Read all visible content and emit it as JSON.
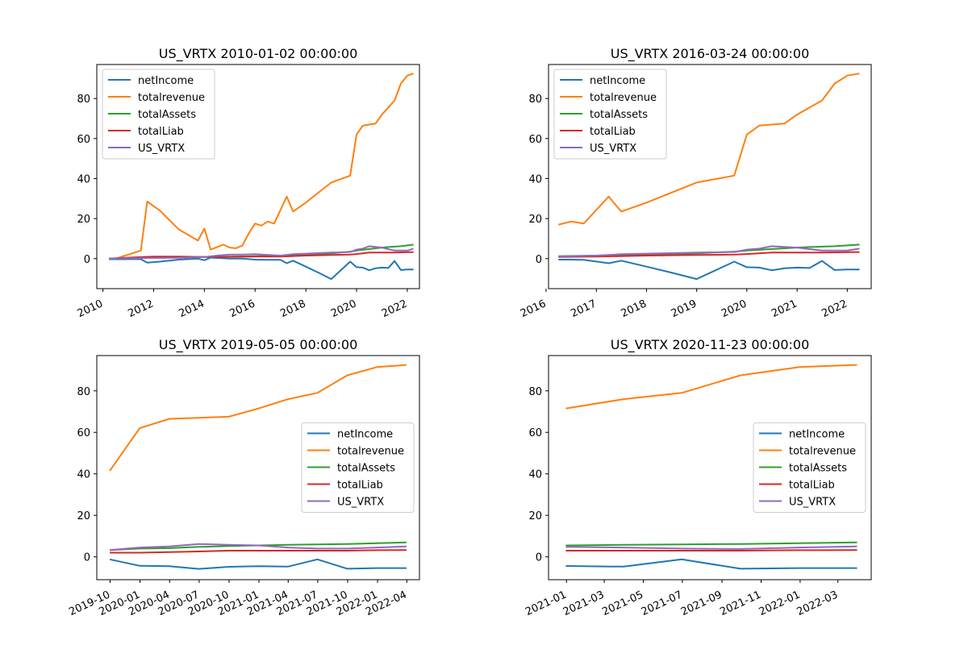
{
  "colors": {
    "netIncome": "#1f77b4",
    "totalrevenue": "#ff7f0e",
    "totalAssets": "#2ca02c",
    "totalLiab": "#d62728",
    "US_VRTX": "#9467bd"
  },
  "chart_data": [
    {
      "type": "line",
      "title": "US_VRTX 2010-01-02 00:00:00",
      "xlim": [
        "2009-10-05",
        "2022-06-25"
      ],
      "ylim": [
        -15,
        97
      ],
      "x_ticks": [
        "2010-01-01",
        "2012-01-01",
        "2014-01-01",
        "2016-01-01",
        "2018-01-01",
        "2020-01-01",
        "2022-01-01"
      ],
      "x_tick_labels": [
        "2010",
        "2012",
        "2014",
        "2016",
        "2018",
        "2020",
        "2022"
      ],
      "y_ticks": [
        0,
        20,
        40,
        60,
        80
      ],
      "y_tick_labels": [
        "0",
        "20",
        "40",
        "60",
        "80"
      ],
      "legend_position": "upper left",
      "grid": false,
      "series": [
        {
          "name": "netIncome",
          "x": [
            "2010-03-31",
            "2010-09-30",
            "2011-03-31",
            "2011-07-01",
            "2011-10-01",
            "2012-03-31",
            "2013-01-01",
            "2013-10-01",
            "2014-01-01",
            "2014-04-01",
            "2015-01-01",
            "2015-07-01",
            "2016-01-01",
            "2016-07-01",
            "2017-01-01",
            "2017-04-01",
            "2017-07-01",
            "2018-01-01",
            "2018-07-01",
            "2019-01-01",
            "2019-10-01",
            "2020-01-01",
            "2020-04-01",
            "2020-07-01",
            "2020-10-01",
            "2021-01-01",
            "2021-04-01",
            "2021-07-01",
            "2021-10-01",
            "2022-01-01",
            "2022-03-31"
          ],
          "values": [
            -0.3,
            -0.3,
            -0.2,
            -0.3,
            -2.0,
            -1.5,
            -0.5,
            0,
            -0.8,
            0.5,
            0,
            0,
            -0.5,
            -0.6,
            -0.6,
            -2.3,
            -1.0,
            -4.0,
            -7.0,
            -10.2,
            -1.5,
            -4.3,
            -4.5,
            -5.8,
            -4.8,
            -4.5,
            -4.7,
            -1.2,
            -5.7,
            -5.4,
            -5.4
          ]
        },
        {
          "name": "totalrevenue",
          "x": [
            "2010-03-31",
            "2010-06-30",
            "2010-09-30",
            "2011-01-01",
            "2011-03-31",
            "2011-07-01",
            "2011-10-01",
            "2012-03-31",
            "2013-01-01",
            "2013-10-01",
            "2014-01-01",
            "2014-04-01",
            "2014-10-01",
            "2015-01-01",
            "2015-04-01",
            "2015-07-01",
            "2015-10-01",
            "2016-01-01",
            "2016-04-01",
            "2016-07-01",
            "2016-10-01",
            "2017-04-01",
            "2017-07-01",
            "2018-01-01",
            "2018-07-01",
            "2019-01-01",
            "2019-10-01",
            "2020-01-01",
            "2020-04-01",
            "2020-10-01",
            "2021-01-01",
            "2021-04-01",
            "2021-07-01",
            "2021-10-01",
            "2022-01-01",
            "2022-03-31"
          ],
          "values": [
            0,
            0,
            1.0,
            2.0,
            3.0,
            4.0,
            28.5,
            24.0,
            14.5,
            9.0,
            15.0,
            4.5,
            7.0,
            5.5,
            5.2,
            6.5,
            12.5,
            17.5,
            16.5,
            18.5,
            17.5,
            31.0,
            23.5,
            28.0,
            33.0,
            38.0,
            41.5,
            62.0,
            66.5,
            67.5,
            72.0,
            75.5,
            79.0,
            87.5,
            91.5,
            92.5
          ]
        },
        {
          "name": "totalAssets",
          "x": [
            "2010-03-31",
            "2011-01-01",
            "2012-01-01",
            "2013-01-01",
            "2014-01-01",
            "2015-01-01",
            "2016-01-01",
            "2017-01-01",
            "2018-01-01",
            "2019-01-01",
            "2019-10-01",
            "2020-01-01",
            "2020-07-01",
            "2021-01-01",
            "2021-04-01",
            "2021-07-01",
            "2021-10-01",
            "2022-01-01",
            "2022-03-31"
          ],
          "values": [
            0,
            0.3,
            0.5,
            0.6,
            0.8,
            1.0,
            1.2,
            1.5,
            2.0,
            2.6,
            3.5,
            4.0,
            4.8,
            5.5,
            5.8,
            6.0,
            6.2,
            6.6,
            7.0
          ]
        },
        {
          "name": "totalLiab",
          "x": [
            "2010-03-31",
            "2011-01-01",
            "2012-01-01",
            "2013-01-01",
            "2014-01-01",
            "2015-01-01",
            "2016-01-01",
            "2017-01-01",
            "2018-01-01",
            "2019-01-01",
            "2019-10-01",
            "2020-01-01",
            "2020-07-01",
            "2021-01-01",
            "2021-07-01",
            "2022-01-01",
            "2022-03-31"
          ],
          "values": [
            0,
            0.5,
            1.0,
            1.0,
            0.8,
            0.9,
            1.0,
            1.0,
            1.5,
            1.8,
            2.0,
            2.3,
            3.0,
            3.0,
            3.0,
            3.2,
            3.3
          ]
        },
        {
          "name": "US_VRTX",
          "x": [
            "2010-03-31",
            "2011-01-01",
            "2012-01-01",
            "2013-01-01",
            "2014-01-01",
            "2014-07-01",
            "2015-01-01",
            "2015-07-01",
            "2016-01-01",
            "2017-01-01",
            "2017-07-01",
            "2018-01-01",
            "2019-01-01",
            "2019-10-01",
            "2020-01-01",
            "2020-04-01",
            "2020-07-01",
            "2021-01-01",
            "2021-07-01",
            "2022-01-01",
            "2022-03-31"
          ],
          "values": [
            0,
            0.2,
            0.3,
            0.4,
            0.8,
            1.5,
            2.0,
            2.0,
            2.2,
            1.5,
            2.2,
            2.5,
            3.0,
            3.3,
            4.5,
            5.0,
            6.2,
            5.5,
            4.0,
            4.0,
            5.0
          ]
        }
      ]
    },
    {
      "type": "line",
      "title": "US_VRTX 2016-03-24 00:00:00",
      "xlim": [
        "2016-01-19",
        "2022-06-24"
      ],
      "ylim": [
        -15,
        97
      ],
      "x_ticks": [
        "2016-01-01",
        "2017-01-01",
        "2018-01-01",
        "2019-01-01",
        "2020-01-01",
        "2021-01-01",
        "2022-01-01"
      ],
      "x_tick_labels": [
        "2016",
        "2017",
        "2018",
        "2019",
        "2020",
        "2021",
        "2022"
      ],
      "y_ticks": [
        0,
        20,
        40,
        60,
        80
      ],
      "y_tick_labels": [
        "0",
        "20",
        "40",
        "60",
        "80"
      ],
      "legend_position": "upper left",
      "grid": false,
      "series": [
        {
          "name": "netIncome",
          "x": [
            "2016-03-31",
            "2016-07-01",
            "2016-10-01",
            "2017-04-01",
            "2017-07-01",
            "2018-01-01",
            "2018-07-01",
            "2019-01-01",
            "2019-10-01",
            "2020-01-01",
            "2020-04-01",
            "2020-07-01",
            "2020-10-01",
            "2021-01-01",
            "2021-04-01",
            "2021-07-01",
            "2021-10-01",
            "2022-01-01",
            "2022-03-31"
          ],
          "values": [
            -0.5,
            -0.5,
            -0.6,
            -2.3,
            -1.0,
            -4.0,
            -7.0,
            -10.2,
            -1.5,
            -4.3,
            -4.5,
            -5.8,
            -4.8,
            -4.5,
            -4.7,
            -1.2,
            -5.7,
            -5.4,
            -5.4
          ]
        },
        {
          "name": "totalrevenue",
          "x": [
            "2016-03-31",
            "2016-07-01",
            "2016-10-01",
            "2017-04-01",
            "2017-07-01",
            "2018-01-01",
            "2018-07-01",
            "2019-01-01",
            "2019-10-01",
            "2020-01-01",
            "2020-04-01",
            "2020-10-01",
            "2021-01-01",
            "2021-04-01",
            "2021-07-01",
            "2021-10-01",
            "2022-01-01",
            "2022-03-31"
          ],
          "values": [
            17.0,
            18.5,
            17.5,
            31.0,
            23.5,
            28.0,
            33.0,
            38.0,
            41.5,
            62.0,
            66.5,
            67.5,
            72.0,
            75.5,
            79.0,
            87.5,
            91.5,
            92.5
          ]
        },
        {
          "name": "totalAssets",
          "x": [
            "2016-03-31",
            "2017-01-01",
            "2018-01-01",
            "2019-01-01",
            "2019-10-01",
            "2020-01-01",
            "2020-07-01",
            "2021-01-01",
            "2021-04-01",
            "2021-07-01",
            "2021-10-01",
            "2022-01-01",
            "2022-03-31"
          ],
          "values": [
            1.2,
            1.5,
            2.0,
            2.6,
            3.5,
            4.0,
            4.8,
            5.5,
            5.8,
            6.0,
            6.2,
            6.6,
            7.0
          ]
        },
        {
          "name": "totalLiab",
          "x": [
            "2016-03-31",
            "2017-01-01",
            "2018-01-01",
            "2019-01-01",
            "2019-10-01",
            "2020-01-01",
            "2020-07-01",
            "2021-01-01",
            "2021-07-01",
            "2022-01-01",
            "2022-03-31"
          ],
          "values": [
            0.8,
            1.0,
            1.5,
            1.8,
            2.0,
            2.3,
            3.0,
            3.0,
            3.0,
            3.2,
            3.3
          ]
        },
        {
          "name": "US_VRTX",
          "x": [
            "2016-03-31",
            "2017-01-01",
            "2017-07-01",
            "2018-01-01",
            "2019-01-01",
            "2019-10-01",
            "2020-01-01",
            "2020-04-01",
            "2020-07-01",
            "2021-01-01",
            "2021-07-01",
            "2022-01-01",
            "2022-03-31"
          ],
          "values": [
            1.0,
            1.5,
            2.2,
            2.5,
            3.0,
            3.3,
            4.5,
            5.0,
            6.2,
            5.5,
            4.0,
            4.0,
            5.0
          ]
        }
      ]
    },
    {
      "type": "line",
      "title": "US_VRTX 2019-05-05 00:00:00",
      "xlim": [
        "2019-08-21",
        "2022-05-10"
      ],
      "ylim": [
        -11,
        97
      ],
      "x_ticks": [
        "2019-10-01",
        "2020-01-01",
        "2020-04-01",
        "2020-07-01",
        "2020-10-01",
        "2021-01-01",
        "2021-04-01",
        "2021-07-01",
        "2021-10-01",
        "2022-01-01",
        "2022-04-01"
      ],
      "x_tick_labels": [
        "2019-10",
        "2020-01",
        "2020-04",
        "2020-07",
        "2020-10",
        "2021-01",
        "2021-04",
        "2021-07",
        "2021-10",
        "2022-01",
        "2022-04"
      ],
      "y_ticks": [
        0,
        20,
        40,
        60,
        80
      ],
      "y_tick_labels": [
        "0",
        "20",
        "40",
        "60",
        "80"
      ],
      "legend_position": "center right",
      "grid": false,
      "series": [
        {
          "name": "netIncome",
          "x": [
            "2019-09-30",
            "2019-12-31",
            "2020-03-31",
            "2020-06-30",
            "2020-09-30",
            "2020-12-31",
            "2021-03-31",
            "2021-06-30",
            "2021-09-30",
            "2021-12-31",
            "2022-03-31"
          ],
          "values": [
            -1.2,
            -4.3,
            -4.5,
            -5.8,
            -4.8,
            -4.5,
            -4.7,
            -1.2,
            -5.7,
            -5.4,
            -5.4
          ]
        },
        {
          "name": "totalrevenue",
          "x": [
            "2019-09-30",
            "2019-12-31",
            "2020-03-31",
            "2020-06-30",
            "2020-09-30",
            "2020-12-31",
            "2021-03-31",
            "2021-06-30",
            "2021-09-30",
            "2021-12-31",
            "2022-03-31"
          ],
          "values": [
            41.5,
            62.0,
            66.5,
            67.0,
            67.5,
            71.5,
            76.0,
            79.0,
            87.5,
            91.5,
            92.5
          ]
        },
        {
          "name": "totalAssets",
          "x": [
            "2019-09-30",
            "2019-12-31",
            "2020-03-31",
            "2020-06-30",
            "2020-09-30",
            "2020-12-31",
            "2021-03-31",
            "2021-06-30",
            "2021-09-30",
            "2021-12-31",
            "2022-03-31"
          ],
          "values": [
            3.3,
            4.0,
            4.2,
            4.8,
            5.2,
            5.5,
            5.8,
            6.0,
            6.2,
            6.6,
            7.0
          ]
        },
        {
          "name": "totalLiab",
          "x": [
            "2019-09-30",
            "2019-12-31",
            "2020-03-31",
            "2020-06-30",
            "2020-09-30",
            "2020-12-31",
            "2021-03-31",
            "2021-06-30",
            "2021-09-30",
            "2021-12-31",
            "2022-03-31"
          ],
          "values": [
            2.0,
            2.0,
            2.3,
            2.6,
            3.0,
            3.0,
            3.0,
            3.0,
            3.0,
            3.2,
            3.3
          ]
        },
        {
          "name": "US_VRTX",
          "x": [
            "2019-09-30",
            "2019-12-31",
            "2020-03-31",
            "2020-06-30",
            "2020-09-30",
            "2020-12-31",
            "2021-03-31",
            "2021-06-30",
            "2021-09-30",
            "2021-12-31",
            "2022-03-31"
          ],
          "values": [
            3.3,
            4.5,
            5.0,
            6.2,
            5.8,
            5.5,
            4.5,
            4.0,
            4.0,
            4.5,
            5.0
          ]
        }
      ]
    },
    {
      "type": "line",
      "title": "US_VRTX 2020-11-23 00:00:00",
      "xlim": [
        "2020-12-04",
        "2022-04-22"
      ],
      "ylim": [
        -11,
        97
      ],
      "x_ticks": [
        "2021-01-01",
        "2021-03-01",
        "2021-05-01",
        "2021-07-01",
        "2021-09-01",
        "2021-11-01",
        "2022-01-01",
        "2022-03-01"
      ],
      "x_tick_labels": [
        "2021-01",
        "2021-03",
        "2021-05",
        "2021-07",
        "2021-09",
        "2021-11",
        "2022-01",
        "2022-03"
      ],
      "y_ticks": [
        0,
        20,
        40,
        60,
        80
      ],
      "y_tick_labels": [
        "0",
        "20",
        "40",
        "60",
        "80"
      ],
      "legend_position": "center right",
      "grid": false,
      "series": [
        {
          "name": "netIncome",
          "x": [
            "2020-12-31",
            "2021-03-31",
            "2021-06-30",
            "2021-09-30",
            "2021-12-31",
            "2022-03-31"
          ],
          "values": [
            -4.4,
            -4.7,
            -1.2,
            -5.7,
            -5.4,
            -5.4
          ]
        },
        {
          "name": "totalrevenue",
          "x": [
            "2020-12-31",
            "2021-03-31",
            "2021-06-30",
            "2021-09-30",
            "2021-12-31",
            "2022-03-31"
          ],
          "values": [
            71.5,
            76.0,
            79.0,
            87.5,
            91.5,
            92.5
          ]
        },
        {
          "name": "totalAssets",
          "x": [
            "2020-12-31",
            "2021-03-31",
            "2021-06-30",
            "2021-09-30",
            "2021-12-31",
            "2022-03-31"
          ],
          "values": [
            5.5,
            5.8,
            6.0,
            6.2,
            6.6,
            7.0
          ]
        },
        {
          "name": "totalLiab",
          "x": [
            "2020-12-31",
            "2021-03-31",
            "2021-06-30",
            "2021-09-30",
            "2021-12-31",
            "2022-03-31"
          ],
          "values": [
            3.0,
            3.0,
            3.0,
            3.0,
            3.2,
            3.3
          ]
        },
        {
          "name": "US_VRTX",
          "x": [
            "2020-12-31",
            "2021-03-31",
            "2021-06-30",
            "2021-09-30",
            "2021-12-31",
            "2022-03-31"
          ],
          "values": [
            4.8,
            4.5,
            4.0,
            3.8,
            4.5,
            5.0
          ]
        }
      ]
    }
  ]
}
